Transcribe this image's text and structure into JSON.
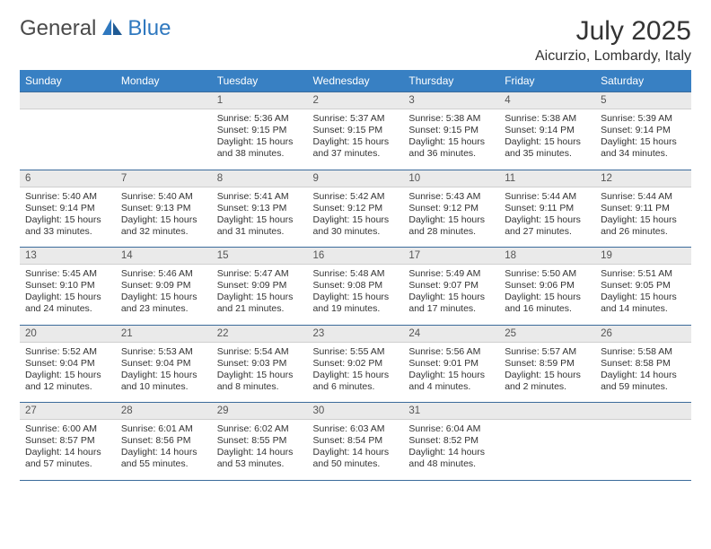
{
  "brand": {
    "general": "General",
    "blue": "Blue"
  },
  "header": {
    "month_title": "July 2025",
    "location": "Aicurzio, Lombardy, Italy"
  },
  "colors": {
    "header_bg": "#3880c3",
    "header_fg": "#ffffff",
    "numrow_bg": "#eaeaea",
    "numrow_fg": "#555555",
    "border": "#3b6b9b",
    "body_text": "#333333",
    "brand_gray": "#4a4a4a",
    "brand_blue": "#2f78bf",
    "page_bg": "#ffffff"
  },
  "typography": {
    "day_header_fontsize": 12,
    "daynum_fontsize": 11.5,
    "cell_fontsize": 10.5,
    "title_fontsize": 30,
    "location_fontsize": 16,
    "logo_fontsize": 24
  },
  "calendar": {
    "type": "table",
    "day_headers": [
      "Sunday",
      "Monday",
      "Tuesday",
      "Wednesday",
      "Thursday",
      "Friday",
      "Saturday"
    ],
    "weeks": [
      {
        "nums": [
          "",
          "",
          "1",
          "2",
          "3",
          "4",
          "5"
        ],
        "sunrise": [
          "",
          "",
          "Sunrise: 5:36 AM",
          "Sunrise: 5:37 AM",
          "Sunrise: 5:38 AM",
          "Sunrise: 5:38 AM",
          "Sunrise: 5:39 AM"
        ],
        "sunset": [
          "",
          "",
          "Sunset: 9:15 PM",
          "Sunset: 9:15 PM",
          "Sunset: 9:15 PM",
          "Sunset: 9:14 PM",
          "Sunset: 9:14 PM"
        ],
        "daylight": [
          "",
          "",
          "Daylight: 15 hours and 38 minutes.",
          "Daylight: 15 hours and 37 minutes.",
          "Daylight: 15 hours and 36 minutes.",
          "Daylight: 15 hours and 35 minutes.",
          "Daylight: 15 hours and 34 minutes."
        ]
      },
      {
        "nums": [
          "6",
          "7",
          "8",
          "9",
          "10",
          "11",
          "12"
        ],
        "sunrise": [
          "Sunrise: 5:40 AM",
          "Sunrise: 5:40 AM",
          "Sunrise: 5:41 AM",
          "Sunrise: 5:42 AM",
          "Sunrise: 5:43 AM",
          "Sunrise: 5:44 AM",
          "Sunrise: 5:44 AM"
        ],
        "sunset": [
          "Sunset: 9:14 PM",
          "Sunset: 9:13 PM",
          "Sunset: 9:13 PM",
          "Sunset: 9:12 PM",
          "Sunset: 9:12 PM",
          "Sunset: 9:11 PM",
          "Sunset: 9:11 PM"
        ],
        "daylight": [
          "Daylight: 15 hours and 33 minutes.",
          "Daylight: 15 hours and 32 minutes.",
          "Daylight: 15 hours and 31 minutes.",
          "Daylight: 15 hours and 30 minutes.",
          "Daylight: 15 hours and 28 minutes.",
          "Daylight: 15 hours and 27 minutes.",
          "Daylight: 15 hours and 26 minutes."
        ]
      },
      {
        "nums": [
          "13",
          "14",
          "15",
          "16",
          "17",
          "18",
          "19"
        ],
        "sunrise": [
          "Sunrise: 5:45 AM",
          "Sunrise: 5:46 AM",
          "Sunrise: 5:47 AM",
          "Sunrise: 5:48 AM",
          "Sunrise: 5:49 AM",
          "Sunrise: 5:50 AM",
          "Sunrise: 5:51 AM"
        ],
        "sunset": [
          "Sunset: 9:10 PM",
          "Sunset: 9:09 PM",
          "Sunset: 9:09 PM",
          "Sunset: 9:08 PM",
          "Sunset: 9:07 PM",
          "Sunset: 9:06 PM",
          "Sunset: 9:05 PM"
        ],
        "daylight": [
          "Daylight: 15 hours and 24 minutes.",
          "Daylight: 15 hours and 23 minutes.",
          "Daylight: 15 hours and 21 minutes.",
          "Daylight: 15 hours and 19 minutes.",
          "Daylight: 15 hours and 17 minutes.",
          "Daylight: 15 hours and 16 minutes.",
          "Daylight: 15 hours and 14 minutes."
        ]
      },
      {
        "nums": [
          "20",
          "21",
          "22",
          "23",
          "24",
          "25",
          "26"
        ],
        "sunrise": [
          "Sunrise: 5:52 AM",
          "Sunrise: 5:53 AM",
          "Sunrise: 5:54 AM",
          "Sunrise: 5:55 AM",
          "Sunrise: 5:56 AM",
          "Sunrise: 5:57 AM",
          "Sunrise: 5:58 AM"
        ],
        "sunset": [
          "Sunset: 9:04 PM",
          "Sunset: 9:04 PM",
          "Sunset: 9:03 PM",
          "Sunset: 9:02 PM",
          "Sunset: 9:01 PM",
          "Sunset: 8:59 PM",
          "Sunset: 8:58 PM"
        ],
        "daylight": [
          "Daylight: 15 hours and 12 minutes.",
          "Daylight: 15 hours and 10 minutes.",
          "Daylight: 15 hours and 8 minutes.",
          "Daylight: 15 hours and 6 minutes.",
          "Daylight: 15 hours and 4 minutes.",
          "Daylight: 15 hours and 2 minutes.",
          "Daylight: 14 hours and 59 minutes."
        ]
      },
      {
        "nums": [
          "27",
          "28",
          "29",
          "30",
          "31",
          "",
          ""
        ],
        "sunrise": [
          "Sunrise: 6:00 AM",
          "Sunrise: 6:01 AM",
          "Sunrise: 6:02 AM",
          "Sunrise: 6:03 AM",
          "Sunrise: 6:04 AM",
          "",
          ""
        ],
        "sunset": [
          "Sunset: 8:57 PM",
          "Sunset: 8:56 PM",
          "Sunset: 8:55 PM",
          "Sunset: 8:54 PM",
          "Sunset: 8:52 PM",
          "",
          ""
        ],
        "daylight": [
          "Daylight: 14 hours and 57 minutes.",
          "Daylight: 14 hours and 55 minutes.",
          "Daylight: 14 hours and 53 minutes.",
          "Daylight: 14 hours and 50 minutes.",
          "Daylight: 14 hours and 48 minutes.",
          "",
          ""
        ]
      }
    ]
  }
}
